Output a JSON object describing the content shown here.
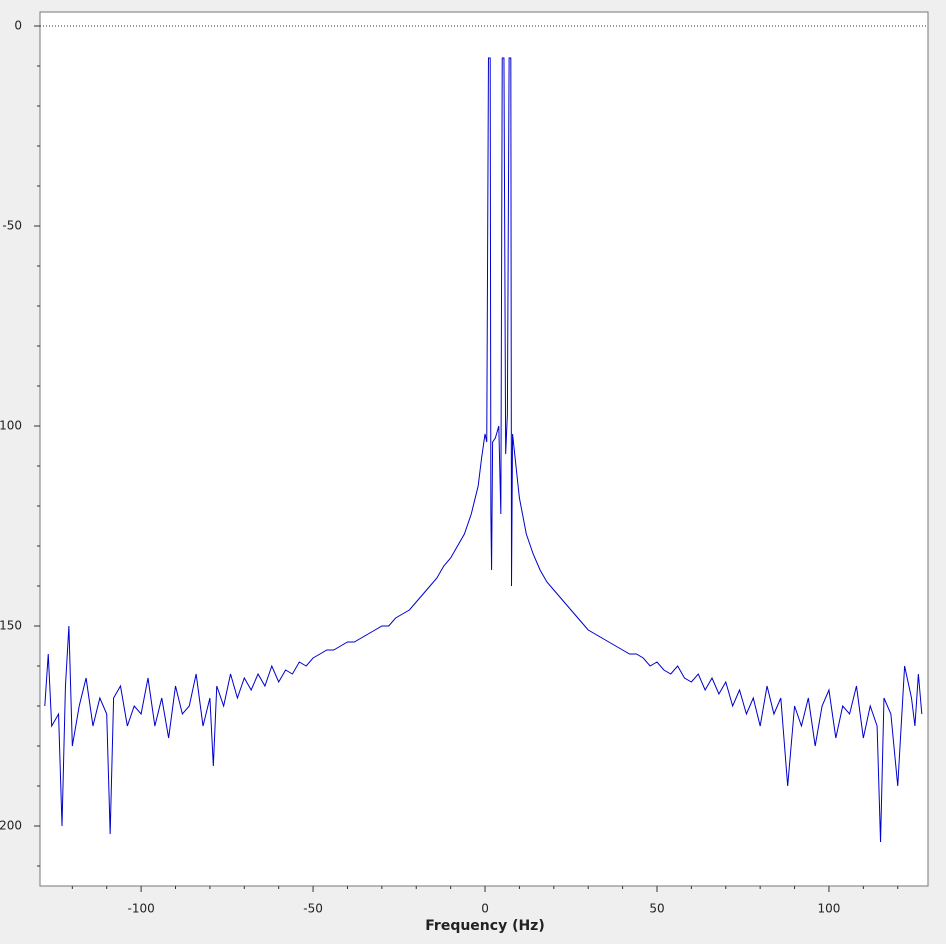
{
  "chart_data": {
    "type": "line",
    "xlabel": "Frequency (Hz)",
    "x": [
      -128,
      -127,
      -126,
      -124,
      -123,
      -122,
      -121,
      -120,
      -118,
      -116,
      -114,
      -112,
      -110,
      -109,
      -108,
      -106,
      -104,
      -102,
      -100,
      -98,
      -96,
      -94,
      -92,
      -90,
      -88,
      -86,
      -84,
      -82,
      -80,
      -79,
      -78,
      -76,
      -74,
      -72,
      -70,
      -68,
      -66,
      -64,
      -62,
      -60,
      -58,
      -56,
      -54,
      -52,
      -50,
      -48,
      -46,
      -44,
      -42,
      -40,
      -38,
      -36,
      -34,
      -32,
      -30,
      -28,
      -26,
      -24,
      -22,
      -20,
      -18,
      -16,
      -14,
      -12,
      -10,
      -8,
      -6,
      -4,
      -2,
      -1,
      0,
      0.5,
      1,
      1.5,
      1.7,
      1.9,
      2.2,
      3,
      4,
      4.6,
      5,
      5.5,
      6,
      6.5,
      7,
      7.5,
      7.7,
      8,
      9,
      10,
      12,
      14,
      16,
      18,
      20,
      22,
      24,
      26,
      28,
      30,
      32,
      34,
      36,
      38,
      40,
      42,
      44,
      46,
      48,
      50,
      52,
      54,
      56,
      58,
      60,
      62,
      64,
      66,
      68,
      70,
      72,
      74,
      76,
      78,
      80,
      82,
      84,
      86,
      88,
      90,
      92,
      94,
      96,
      98,
      100,
      102,
      104,
      106,
      108,
      110,
      112,
      114,
      115,
      116,
      118,
      120,
      122,
      124,
      125,
      126,
      127
    ],
    "series": [
      {
        "color": "#0000cc",
        "values": [
          -170,
          -157,
          -175,
          -172,
          -200,
          -165,
          -150,
          -180,
          -170,
          -163,
          -175,
          -168,
          -172,
          -202,
          -168,
          -165,
          -175,
          -170,
          -172,
          -163,
          -175,
          -168,
          -178,
          -165,
          -172,
          -170,
          -162,
          -175,
          -168,
          -185,
          -165,
          -170,
          -162,
          -168,
          -163,
          -166,
          -162,
          -165,
          -160,
          -164,
          -161,
          -162,
          -159,
          -160,
          -158,
          -157,
          -156,
          -156,
          -155,
          -154,
          -154,
          -153,
          -152,
          -151,
          -150,
          -150,
          -148,
          -147,
          -146,
          -144,
          -142,
          -140,
          -138,
          -135,
          -133,
          -130,
          -127,
          -122,
          -115,
          -108,
          -102,
          -104,
          -8,
          -8,
          -122,
          -136,
          -104,
          -103,
          -100,
          -122,
          -8,
          -8,
          -107,
          -97,
          -8,
          -8,
          -140,
          -102,
          -110,
          -118,
          -127,
          -132,
          -136,
          -139,
          -141,
          -143,
          -145,
          -147,
          -149,
          -151,
          -152,
          -153,
          -154,
          -155,
          -156,
          -157,
          -157,
          -158,
          -160,
          -159,
          -161,
          -162,
          -160,
          -163,
          -164,
          -162,
          -166,
          -163,
          -167,
          -164,
          -170,
          -166,
          -172,
          -168,
          -175,
          -165,
          -172,
          -168,
          -190,
          -170,
          -175,
          -168,
          -180,
          -170,
          -166,
          -178,
          -170,
          -172,
          -165,
          -178,
          -170,
          -175,
          -204,
          -168,
          -172,
          -190,
          -160,
          -168,
          -175,
          -162,
          -172
        ]
      }
    ],
    "xlim": [
      -129.4,
      128.8
    ],
    "xticks": [
      -100,
      -50,
      0,
      50,
      100
    ],
    "xminorticks": [
      -120,
      -110,
      -90,
      -80,
      -70,
      -60,
      -40,
      -30,
      -20,
      -10,
      10,
      20,
      30,
      40,
      60,
      70,
      80,
      90,
      110,
      120
    ],
    "ylim": [
      -215,
      3.5
    ],
    "yticks": [
      0,
      -50,
      {
        "value": -100,
        "label": "100"
      },
      {
        "value": -150,
        "label": "150"
      },
      {
        "value": -200,
        "label": "200"
      }
    ],
    "yminorticks": [
      -10,
      -20,
      -30,
      -40,
      -60,
      -70,
      -80,
      -90,
      -110,
      -120,
      -130,
      -140,
      -160,
      -170,
      -180,
      -190,
      -210
    ],
    "hline": 0,
    "grid": false
  }
}
